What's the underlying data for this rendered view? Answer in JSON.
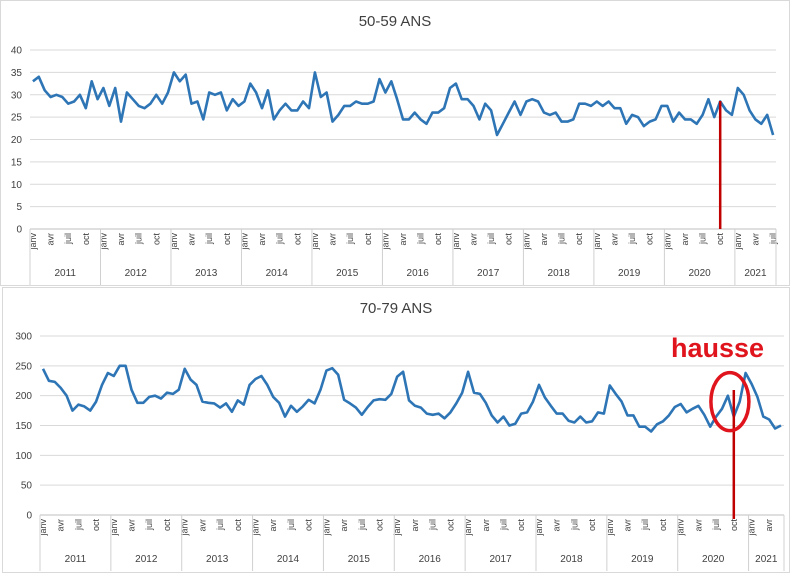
{
  "colors": {
    "line": "#2e75b6",
    "marker": "#c00000",
    "highlight": "#e0141c",
    "grid": "#d9d9d9",
    "axis_text": "#404040"
  },
  "annotation": {
    "text": "hausse"
  },
  "chart_data": [
    {
      "type": "line",
      "title": "50-59 ANS",
      "xlabel": "",
      "ylabel": "",
      "ylim": [
        0,
        40
      ],
      "yticks": [
        0,
        5,
        10,
        15,
        20,
        25,
        30,
        35,
        40
      ],
      "years": [
        "2011",
        "2012",
        "2013",
        "2014",
        "2015",
        "2016",
        "2017",
        "2018",
        "2019",
        "2020",
        "2021"
      ],
      "month_labels": [
        "janv",
        "avr",
        "juil",
        "oct"
      ],
      "x_start": "2011-01",
      "x_end": "2021-07",
      "grid": true,
      "legend": "none",
      "vertical_marker": "2020-10",
      "series": [
        {
          "values": [
            33,
            34,
            31,
            29.5,
            30,
            29.5,
            28,
            28.5,
            30,
            27,
            33,
            29,
            31.5,
            27.5,
            31.5,
            24,
            30.5,
            29,
            27.5,
            27,
            28,
            30,
            28,
            30.5,
            35,
            33,
            34.5,
            28,
            28.5,
            24.5,
            30.5,
            30,
            30.5,
            26.5,
            29,
            27.5,
            28.5,
            32.5,
            30.5,
            27,
            31,
            24.5,
            26.5,
            28,
            26.5,
            26.5,
            28.5,
            27,
            35,
            29.5,
            30.5,
            24,
            25.5,
            27.5,
            27.5,
            28.5,
            28,
            28,
            28.5,
            33.5,
            30.5,
            33,
            29,
            24.5,
            24.5,
            26,
            24.5,
            23.5,
            26,
            26,
            27,
            31.5,
            32.5,
            29,
            29,
            27.5,
            24.5,
            28,
            26.5,
            21,
            23.5,
            26,
            28.5,
            25.5,
            28.5,
            29,
            28.5,
            26,
            25.5,
            26,
            24,
            24,
            24.5,
            28,
            28,
            27.5,
            28.5,
            27.5,
            28.5,
            27,
            27,
            23.5,
            25.5,
            25,
            23,
            24,
            24.5,
            27.5,
            27.5,
            24,
            26,
            24.5,
            24.5,
            23.5,
            25.5,
            29,
            25,
            28.5,
            26.5,
            25.5,
            31.5,
            30,
            26.5,
            24.5,
            23.5,
            25.5,
            21
          ]
        }
      ]
    },
    {
      "type": "line",
      "title": "70-79 ANS",
      "xlabel": "",
      "ylabel": "",
      "ylim": [
        0,
        300
      ],
      "yticks": [
        0,
        50,
        100,
        150,
        200,
        250,
        300
      ],
      "years": [
        "2011",
        "2012",
        "2013",
        "2014",
        "2015",
        "2016",
        "2017",
        "2018",
        "2019",
        "2020",
        "2021"
      ],
      "month_labels": [
        "janv",
        "avr",
        "juil",
        "oct"
      ],
      "x_start": "2011-01",
      "x_end": "2021-07",
      "grid": true,
      "legend": "none",
      "vertical_marker": "2020-10",
      "highlight_ellipse_center": "2020-09",
      "series": [
        {
          "values": [
            245,
            225,
            223,
            213,
            200,
            175,
            185,
            182,
            175,
            190,
            218,
            238,
            233,
            250,
            250,
            210,
            188,
            188,
            198,
            200,
            195,
            205,
            203,
            210,
            245,
            227,
            218,
            190,
            188,
            187,
            180,
            187,
            173,
            192,
            185,
            218,
            228,
            233,
            218,
            198,
            188,
            165,
            183,
            173,
            182,
            193,
            187,
            210,
            242,
            246,
            235,
            193,
            187,
            180,
            168,
            181,
            192,
            194,
            193,
            203,
            232,
            240,
            192,
            183,
            180,
            170,
            168,
            170,
            162,
            172,
            187,
            205,
            240,
            205,
            203,
            188,
            167,
            155,
            165,
            150,
            153,
            170,
            172,
            190,
            218,
            197,
            183,
            170,
            170,
            158,
            155,
            165,
            155,
            157,
            172,
            170,
            217,
            203,
            190,
            167,
            167,
            148,
            148,
            140,
            152,
            157,
            167,
            181,
            186,
            172,
            178,
            183,
            168,
            148,
            165,
            178,
            200,
            165,
            190,
            238,
            220,
            198,
            165,
            160,
            145,
            150
          ]
        }
      ]
    }
  ]
}
